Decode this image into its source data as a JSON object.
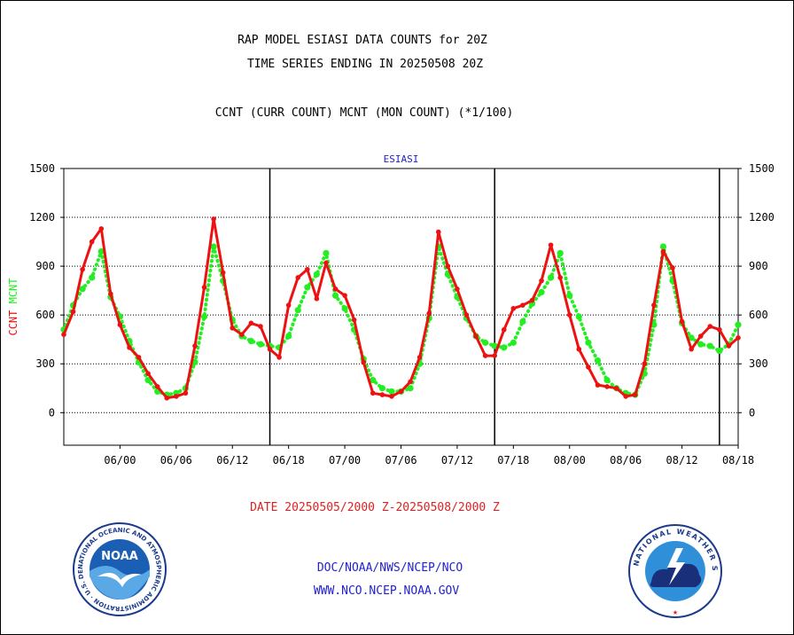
{
  "header": {
    "title_line1": "RAP MODEL ESIASI DATA COUNTS for 20Z",
    "title_line2": "TIME SERIES ENDING IN 20250508 20Z",
    "subtitle": "CCNT (CURR COUNT) MCNT (MON COUNT) (*1/100)"
  },
  "footer": {
    "date_range": "DATE 20250505/2000 Z-20250508/2000 Z",
    "org_line": "DOC/NOAA/NWS/NCEP/NCO",
    "website": "WWW.NCO.NCEP.NOAA.GOV"
  },
  "logos": {
    "noaa_text": "NOAA",
    "noaa_ring": "NATIONAL OCEANIC AND ATMOSPHERIC ADMINISTRATION · U.S. DEPARTMENT OF COMMERCE ·",
    "nws_ring": "NATIONAL WEATHER SERVICE"
  },
  "colors": {
    "ccnt": "#ee1111",
    "mcnt": "#22ee22",
    "label_blue": "#2222cc",
    "date_red": "#dd2222"
  },
  "chart_data": {
    "type": "line",
    "title": "ESIASI",
    "ylabel_left": [
      "CCNT",
      "MCNT"
    ],
    "ylim": [
      -200,
      1500
    ],
    "yticks": [
      1500,
      1200,
      900,
      600,
      300,
      0
    ],
    "xlim": [
      0,
      72
    ],
    "xticks": [
      {
        "x": 6,
        "label": "06/00"
      },
      {
        "x": 12,
        "label": "06/06"
      },
      {
        "x": 18,
        "label": "06/12"
      },
      {
        "x": 24,
        "label": "06/18"
      },
      {
        "x": 30,
        "label": "07/00"
      },
      {
        "x": 36,
        "label": "07/06"
      },
      {
        "x": 42,
        "label": "07/12"
      },
      {
        "x": 48,
        "label": "07/18"
      },
      {
        "x": 54,
        "label": "08/00"
      },
      {
        "x": 60,
        "label": "08/06"
      },
      {
        "x": 66,
        "label": "08/12"
      },
      {
        "x": 72,
        "label": "08/18"
      }
    ],
    "day_boundaries": [
      22,
      46,
      70
    ],
    "grid": "horizontal dotted",
    "x": [
      0,
      1,
      2,
      3,
      4,
      5,
      6,
      7,
      8,
      9,
      10,
      11,
      12,
      13,
      14,
      15,
      16,
      17,
      18,
      19,
      20,
      21,
      22,
      23,
      24,
      25,
      26,
      27,
      28,
      29,
      30,
      31,
      32,
      33,
      34,
      35,
      36,
      37,
      38,
      39,
      40,
      41,
      42,
      43,
      44,
      45,
      46,
      47,
      48,
      49,
      50,
      51,
      52,
      53,
      54,
      55,
      56,
      57,
      58,
      59,
      60,
      61,
      62,
      63,
      64,
      65,
      66,
      67,
      68,
      69,
      70,
      71,
      72
    ],
    "series": [
      {
        "name": "CCNT",
        "color": "#ee1111",
        "values": [
          480,
          620,
          880,
          1050,
          1130,
          730,
          540,
          400,
          340,
          240,
          160,
          90,
          100,
          120,
          410,
          770,
          1190,
          860,
          520,
          480,
          550,
          530,
          390,
          340,
          660,
          830,
          880,
          700,
          920,
          760,
          720,
          570,
          310,
          120,
          110,
          100,
          130,
          190,
          340,
          610,
          1110,
          900,
          760,
          600,
          470,
          350,
          350,
          510,
          640,
          660,
          690,
          810,
          1030,
          830,
          600,
          390,
          280,
          170,
          160,
          150,
          100,
          110,
          300,
          660,
          990,
          890,
          560,
          390,
          470,
          530,
          510,
          410,
          460
        ]
      },
      {
        "name": "MCNT",
        "color": "#22ee22",
        "values": [
          510,
          660,
          760,
          830,
          990,
          710,
          590,
          440,
          310,
          200,
          130,
          110,
          120,
          150,
          310,
          590,
          1020,
          810,
          570,
          470,
          440,
          420,
          410,
          400,
          470,
          630,
          770,
          850,
          980,
          720,
          640,
          510,
          330,
          200,
          150,
          130,
          130,
          150,
          300,
          580,
          1020,
          850,
          710,
          580,
          470,
          430,
          410,
          400,
          430,
          560,
          670,
          740,
          830,
          980,
          720,
          590,
          430,
          320,
          200,
          150,
          120,
          110,
          240,
          540,
          1020,
          810,
          550,
          460,
          420,
          410,
          380,
          420,
          540
        ]
      }
    ]
  }
}
